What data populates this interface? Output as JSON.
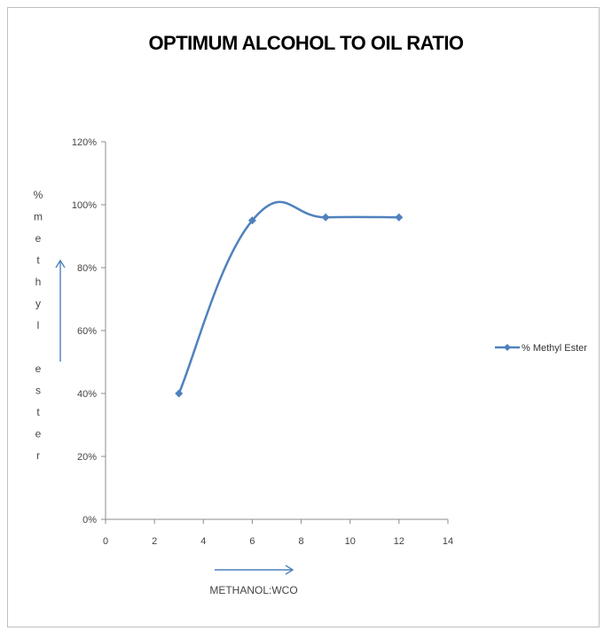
{
  "chart_data": {
    "type": "line",
    "title": "OPTIMUM ALCOHOL TO OIL RATIO",
    "xlabel": "METHANOL:WCO",
    "ylabel_chars": [
      "%",
      "m",
      "e",
      "t",
      "h",
      "y",
      "l",
      "",
      "e",
      "s",
      "t",
      "e",
      "r"
    ],
    "xlim": [
      0,
      14
    ],
    "ylim": [
      0,
      1.2
    ],
    "x_ticks": [
      "0",
      "2",
      "4",
      "6",
      "8",
      "10",
      "12",
      "14"
    ],
    "y_ticks": [
      "0%",
      "20%",
      "40%",
      "60%",
      "80%",
      "100%",
      "120%"
    ],
    "series": [
      {
        "name": "% Methyl Ester",
        "x": [
          3,
          6,
          9,
          12
        ],
        "y": [
          0.4,
          0.95,
          0.96,
          0.96
        ],
        "color": "#4f81bd",
        "smooth": true
      }
    ],
    "legend_position": "right",
    "grid": false
  }
}
